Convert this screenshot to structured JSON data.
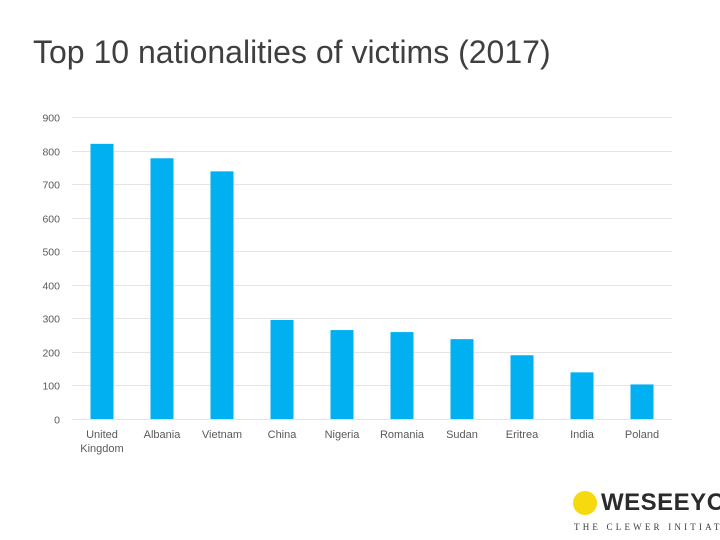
{
  "slide": {
    "title": "Top 10 nationalities of victims (2017)"
  },
  "chart_data": {
    "type": "bar",
    "title": "Top 10 nationalities of victims (2017)",
    "xlabel": "",
    "ylabel": "",
    "categories": [
      [
        "United",
        "Kingdom"
      ],
      [
        "Albania"
      ],
      [
        "Vietnam"
      ],
      [
        "China"
      ],
      [
        "Nigeria"
      ],
      [
        "Romania"
      ],
      [
        "Sudan"
      ],
      [
        "Eritrea"
      ],
      [
        "India"
      ],
      [
        "Poland"
      ]
    ],
    "values": [
      820,
      777,
      738,
      295,
      265,
      259,
      238,
      190,
      139,
      103
    ],
    "ylim": [
      0,
      900
    ],
    "yticks": [
      0,
      100,
      200,
      300,
      400,
      500,
      600,
      700,
      800,
      900
    ],
    "grid": true,
    "legend": "none",
    "bar_color": "#00b0f0",
    "grid_color": "#e4e4e4"
  },
  "branding": {
    "name": "WESEEYOU.",
    "tagline": "THE CLEWER INITIATIVE",
    "dot_color": "#f6d90f"
  }
}
